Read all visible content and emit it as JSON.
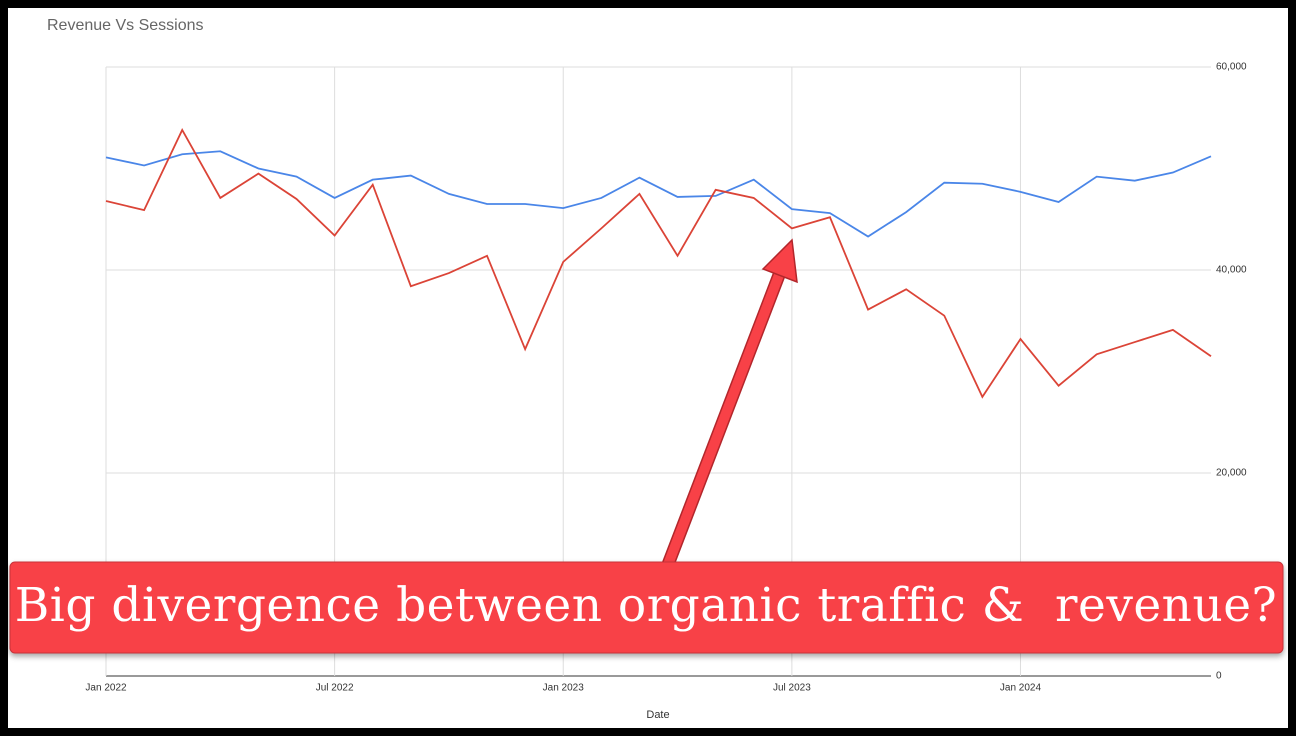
{
  "chart_data": {
    "type": "line",
    "title": "Revenue Vs Sessions",
    "x_label": "Date",
    "x": [
      "2022-01",
      "2022-02",
      "2022-03",
      "2022-04",
      "2022-05",
      "2022-06",
      "2022-07",
      "2022-08",
      "2022-09",
      "2022-10",
      "2022-11",
      "2022-12",
      "2023-01",
      "2023-02",
      "2023-03",
      "2023-04",
      "2023-05",
      "2023-06",
      "2023-07",
      "2023-08",
      "2023-09",
      "2023-10",
      "2023-11",
      "2023-12",
      "2024-01",
      "2024-02",
      "2024-03",
      "2024-04",
      "2024-05",
      "2024-06"
    ],
    "series": [
      {
        "color": "#4a86e8",
        "values": [
          51100,
          50300,
          51400,
          51700,
          50000,
          49200,
          47100,
          48900,
          49300,
          47500,
          46500,
          46500,
          46100,
          47100,
          49100,
          47200,
          47300,
          48900,
          46000,
          45600,
          43300,
          45700,
          48600,
          48500,
          47700,
          46700,
          49200,
          48800,
          49600,
          51200
        ]
      },
      {
        "color": "#db4437",
        "values": [
          46800,
          45900,
          53800,
          47100,
          49500,
          47000,
          43400,
          48400,
          38400,
          39700,
          41400,
          32200,
          40800,
          44100,
          47500,
          41400,
          47900,
          47100,
          44100,
          45200,
          36100,
          38100,
          35500,
          27500,
          33200,
          28600,
          31700,
          32900,
          34100,
          31500
        ]
      }
    ],
    "xlim": [
      "2022-01",
      "2024-06"
    ],
    "xticks": [
      {
        "value": "2022-01",
        "label": "Jan 2022"
      },
      {
        "value": "2022-07",
        "label": "Jul 2022"
      },
      {
        "value": "2023-01",
        "label": "Jan 2023"
      },
      {
        "value": "2023-07",
        "label": "Jul 2023"
      },
      {
        "value": "2024-01",
        "label": "Jan 2024"
      }
    ],
    "ylim": [
      0,
      60000
    ],
    "yticks": [
      0,
      {
        "value": 20000,
        "label": "20,000"
      },
      {
        "value": 40000,
        "label": "40,000"
      },
      {
        "value": 60000,
        "label": "60,000"
      }
    ],
    "grid": true,
    "annotation": "Big divergence between organic traffic &  revenue?"
  }
}
